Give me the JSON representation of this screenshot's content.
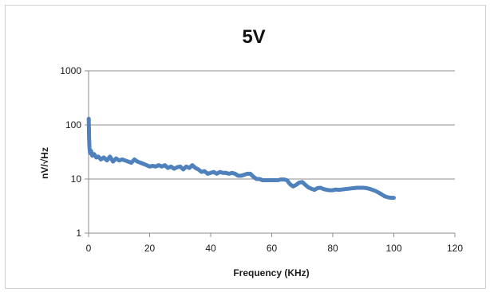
{
  "chart_data": {
    "type": "line",
    "title": "5V",
    "xlabel": "Frequency (KHz)",
    "ylabel": "nV/√Hz",
    "xlim": [
      0,
      120
    ],
    "ylim": [
      1,
      1000
    ],
    "y_scale": "log",
    "x_ticks": [
      "0",
      "20",
      "40",
      "60",
      "80",
      "100",
      "120"
    ],
    "y_ticks": [
      "1",
      "10",
      "100",
      "1000"
    ],
    "grid": "horizontal",
    "legend": "none",
    "line_color": "#4f81bd",
    "series": [
      {
        "x": [
          0.05,
          0.15,
          0.3,
          0.5,
          0.8,
          1.2,
          1.8,
          2.5,
          3.2,
          4,
          5,
          6,
          7,
          8,
          9,
          10,
          11,
          12,
          13,
          14,
          15,
          16,
          17,
          18,
          19,
          20,
          21,
          22,
          23,
          24,
          25,
          26,
          27,
          28,
          29,
          30,
          31,
          32,
          33,
          34,
          35,
          36,
          37,
          38,
          39,
          40,
          41,
          42,
          43,
          44,
          45,
          46,
          47,
          48,
          49,
          50,
          51,
          52,
          53,
          54,
          55,
          56,
          57,
          58,
          59,
          60,
          61,
          62,
          63,
          64,
          65,
          66,
          67,
          68,
          69,
          70,
          71,
          72,
          73,
          74,
          75,
          76,
          77,
          78,
          79,
          80,
          81,
          82,
          83,
          84,
          85,
          86,
          87,
          88,
          89,
          90,
          91,
          92,
          93,
          94,
          95,
          96,
          97,
          98,
          99,
          100
        ],
        "y": [
          130,
          60,
          38,
          30,
          33,
          27,
          29,
          25,
          26,
          23,
          25,
          22,
          26,
          21,
          24,
          22,
          23,
          22,
          21,
          20,
          23,
          21,
          20,
          19,
          18,
          17,
          17.5,
          17,
          18,
          17,
          18,
          16,
          17,
          15.5,
          16.5,
          17,
          15,
          17,
          16,
          18,
          16,
          15,
          13.5,
          14,
          12.5,
          13,
          13.5,
          12.5,
          13.5,
          13,
          13,
          12.5,
          13,
          12.5,
          11.5,
          11.5,
          12,
          12.5,
          12.5,
          11,
          10,
          10,
          9.5,
          9.5,
          9.5,
          9.5,
          9.5,
          9.5,
          9.8,
          9.8,
          9.5,
          8,
          7.3,
          7.8,
          8.6,
          8.8,
          7.8,
          7,
          6.6,
          6.3,
          6.8,
          6.9,
          6.5,
          6.3,
          6.2,
          6.2,
          6.4,
          6.3,
          6.4,
          6.5,
          6.6,
          6.7,
          6.8,
          6.9,
          6.9,
          6.9,
          6.8,
          6.6,
          6.3,
          6,
          5.6,
          5.2,
          4.8,
          4.6,
          4.5,
          4.5
        ]
      }
    ]
  }
}
